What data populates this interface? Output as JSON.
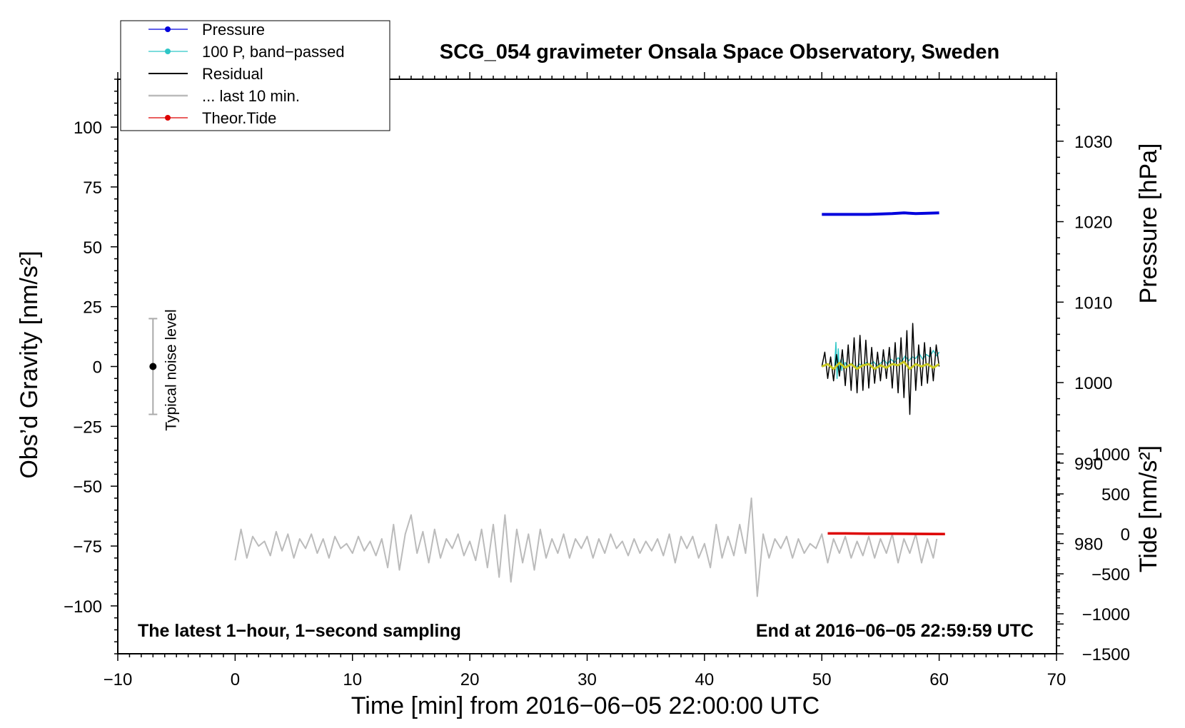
{
  "chart_data": {
    "type": "line",
    "title": "SCG_054 gravimeter Onsala Space Observatory, Sweden",
    "xlabel": "Time [min] from 2016−06−05 22:00:00 UTC",
    "ylabel_left": "Obs’d Gravity [nm/s²]",
    "ylabel_right_top": "Pressure [hPa]",
    "ylabel_right_bottom": "Tide [nm/s²]",
    "xlim": [
      -10,
      70
    ],
    "ylim_left": [
      -120,
      120
    ],
    "x_ticks": [
      "−10",
      "0",
      "10",
      "20",
      "30",
      "40",
      "50",
      "60",
      "70"
    ],
    "y_ticks_left": [
      "100",
      "75",
      "50",
      "25",
      "0",
      "−25",
      "−50",
      "−75",
      "−100"
    ],
    "y_ticks_pressure": [
      "1030",
      "1020",
      "1010",
      "1000",
      "990",
      "980"
    ],
    "y_ticks_tide": [
      "1000",
      "500",
      "0",
      "−500",
      "−1000",
      "−1500"
    ],
    "pressure_ylim": [
      966.3,
      1037.7
    ],
    "tide_ylim": [
      -1500,
      1500
    ],
    "legend": [
      "Pressure",
      "100 P, band−passed",
      "Residual",
      "... last 10 min.",
      "Theor.Tide"
    ],
    "annotation_left": "The latest 1−hour, 1−second sampling",
    "annotation_right": "End at 2016−06−05 22:59:59 UTC",
    "noise_label": "Typical noise level",
    "noise_range": [
      -20,
      20
    ],
    "noise_x": -7,
    "colors": {
      "pressure": "#0000dd",
      "bandpassed": "#2ec6c6",
      "residual": "#000000",
      "last10": "#bbbbbb",
      "tide": "#dd0000",
      "smoothed": "#c8c820",
      "noise_bar": "#aaaaaa"
    },
    "series": [
      {
        "name": "Pressure",
        "x": [
          50,
          52,
          54,
          56,
          57,
          58,
          60
        ],
        "y": [
          1020.9,
          1020.9,
          1020.9,
          1021.0,
          1021.1,
          1021.0,
          1021.1
        ]
      },
      {
        "name": "100 P, band−passed",
        "x": [
          51.1,
          51.2,
          51.3,
          51.4,
          51.5,
          51.6,
          51.7,
          51.8,
          51.9,
          52.0,
          52.3,
          52.6,
          52.9,
          53.2,
          53.5,
          53.8,
          54.1,
          54.4,
          54.7,
          55.0,
          55.3,
          55.6,
          55.9,
          56.2,
          56.5,
          56.8,
          57.1,
          57.4,
          57.7,
          58.0,
          58.3,
          58.6,
          58.9,
          59.2,
          59.5,
          59.8,
          60.0
        ],
        "y": [
          0.0,
          3.0,
          -1.5,
          2.2,
          -1.0,
          0.8,
          -0.5,
          1.0,
          -0.3,
          0.5,
          0.0,
          0.4,
          -0.2,
          0.3,
          0.1,
          0.5,
          0.2,
          0.6,
          0.1,
          0.4,
          0.8,
          0.3,
          0.9,
          0.5,
          1.1,
          0.6,
          1.3,
          0.7,
          1.2,
          1.0,
          1.6,
          0.9,
          1.5,
          1.2,
          2.0,
          1.3,
          1.8
        ]
      },
      {
        "name": "Residual",
        "x": [
          50.0,
          50.25,
          50.5,
          50.75,
          51.0,
          51.25,
          51.5,
          51.75,
          52.0,
          52.25,
          52.5,
          52.75,
          53.0,
          53.25,
          53.5,
          53.75,
          54.0,
          54.25,
          54.5,
          54.75,
          55.0,
          55.25,
          55.5,
          55.75,
          56.0,
          56.25,
          56.5,
          56.75,
          57.0,
          57.25,
          57.5,
          57.75,
          58.0,
          58.25,
          58.5,
          58.75,
          59.0,
          59.25,
          59.5,
          59.75,
          60.0
        ],
        "y": [
          0,
          6,
          -5,
          4,
          -6,
          5,
          -4,
          7,
          -8,
          9,
          -10,
          12,
          -11,
          13,
          -10,
          11,
          -9,
          8,
          -7,
          6,
          -6,
          7,
          -5,
          8,
          -9,
          10,
          -11,
          12,
          -13,
          15,
          -20,
          18,
          -10,
          9,
          -8,
          10,
          -7,
          8,
          -6,
          9,
          0
        ]
      },
      {
        "name": "... last 10 min.",
        "x": [
          0.0,
          0.5,
          1.0,
          1.5,
          2.0,
          2.5,
          3.0,
          3.5,
          4.0,
          4.5,
          5.0,
          5.5,
          6.0,
          6.5,
          7.0,
          7.5,
          8.0,
          8.5,
          9.0,
          9.5,
          10.0,
          10.5,
          11.0,
          11.5,
          12.0,
          12.5,
          13.0,
          13.5,
          14.0,
          14.5,
          15.0,
          15.5,
          16.0,
          16.5,
          17.0,
          17.5,
          18.0,
          18.5,
          19.0,
          19.5,
          20.0,
          20.5,
          21.0,
          21.5,
          22.0,
          22.5,
          23.0,
          23.5,
          24.0,
          24.5,
          25.0,
          25.5,
          26.0,
          26.5,
          27.0,
          27.5,
          28.0,
          28.5,
          29.0,
          29.5,
          30.0,
          30.5,
          31.0,
          31.5,
          32.0,
          32.5,
          33.0,
          33.5,
          34.0,
          34.5,
          35.0,
          35.5,
          36.0,
          36.5,
          37.0,
          37.5,
          38.0,
          38.5,
          39.0,
          39.5,
          40.0,
          40.5,
          41.0,
          41.5,
          42.0,
          42.5,
          43.0,
          43.5,
          44.0,
          44.5,
          45.0,
          45.5,
          46.0,
          46.5,
          47.0,
          47.5,
          48.0,
          48.5,
          49.0,
          49.5,
          50.0,
          50.5,
          51.0,
          51.5,
          52.0,
          52.5,
          53.0,
          53.5,
          54.0,
          54.5,
          55.0,
          55.5,
          56.0,
          56.5,
          57.0,
          57.5,
          58.0,
          58.5,
          59.0,
          59.5,
          59.8
        ],
        "y": [
          -81,
          -68,
          -80,
          -71,
          -75,
          -73,
          -79,
          -69,
          -77,
          -70,
          -80,
          -72,
          -76,
          -70,
          -78,
          -72,
          -80,
          -71,
          -76,
          -74,
          -78,
          -71,
          -77,
          -73,
          -79,
          -72,
          -84,
          -66,
          -85,
          -70,
          -62,
          -78,
          -69,
          -82,
          -68,
          -80,
          -72,
          -76,
          -70,
          -79,
          -73,
          -81,
          -68,
          -84,
          -66,
          -88,
          -62,
          -90,
          -68,
          -82,
          -70,
          -85,
          -68,
          -80,
          -72,
          -78,
          -70,
          -80,
          -72,
          -76,
          -71,
          -80,
          -72,
          -78,
          -70,
          -76,
          -73,
          -79,
          -72,
          -78,
          -73,
          -77,
          -72,
          -79,
          -70,
          -82,
          -71,
          -76,
          -71,
          -80,
          -74,
          -84,
          -66,
          -80,
          -71,
          -79,
          -66,
          -78,
          -55,
          -96,
          -70,
          -80,
          -72,
          -76,
          -71,
          -80,
          -72,
          -78,
          -74,
          -76,
          -70,
          -82,
          -72,
          -78,
          -71,
          -80,
          -73,
          -79,
          -71,
          -80,
          -72,
          -78,
          -70,
          -82,
          -72,
          -78,
          -70,
          -82,
          -72,
          -80,
          -72
        ]
      },
      {
        "name": "Theor.Tide",
        "x": [
          50.5,
          52,
          54,
          56,
          58,
          60.5
        ],
        "y": [
          5,
          5,
          3,
          2,
          0,
          -2
        ]
      }
    ],
    "smoothed_residual": {
      "x": [
        50.0,
        50.5,
        51.0,
        51.5,
        52.0,
        52.5,
        53.0,
        53.5,
        54.0,
        54.5,
        55.0,
        55.5,
        56.0,
        56.5,
        57.0,
        57.5,
        58.0,
        58.5,
        59.0,
        59.5,
        60.0
      ],
      "y": [
        0,
        1,
        -1,
        1.5,
        -0.5,
        1,
        -1,
        0.5,
        1,
        -1,
        0.5,
        -0.5,
        1,
        0.5,
        2,
        -1,
        1,
        0,
        1,
        -0.5,
        1
      ]
    }
  }
}
